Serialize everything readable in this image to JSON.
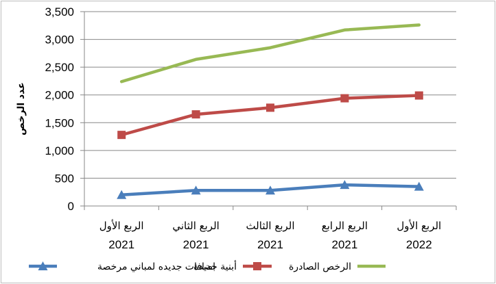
{
  "chart_data": {
    "type": "line",
    "title": "",
    "xlabel": "",
    "ylabel": "عدد الرخص",
    "ylim": [
      0,
      3500
    ],
    "yticks": [
      "0",
      "500",
      "1,000",
      "1,500",
      "2,000",
      "2,500",
      "3,000",
      "3,500"
    ],
    "categories": [
      {
        "quarter": "الربع الأول",
        "year": "2021"
      },
      {
        "quarter": "الربع الثاني",
        "year": "2021"
      },
      {
        "quarter": "الربع الثالث",
        "year": "2021"
      },
      {
        "quarter": "الربع الرابع",
        "year": "2021"
      },
      {
        "quarter": "الربع الأول",
        "year": "2022"
      }
    ],
    "grid": true,
    "legend_position": "bottom",
    "series": [
      {
        "name": "اضافات جديده لمباني مرخصة",
        "color": "#4a7ebb",
        "marker": "triangle",
        "values": [
          200,
          280,
          280,
          380,
          350
        ]
      },
      {
        "name": "أبنية جديدة",
        "color": "#be4b48",
        "marker": "square",
        "values": [
          1280,
          1650,
          1770,
          1940,
          1990
        ]
      },
      {
        "name": "الرخص الصادرة",
        "color": "#98b954",
        "marker": "none",
        "values": [
          2240,
          2640,
          2850,
          3170,
          3260
        ]
      }
    ]
  }
}
